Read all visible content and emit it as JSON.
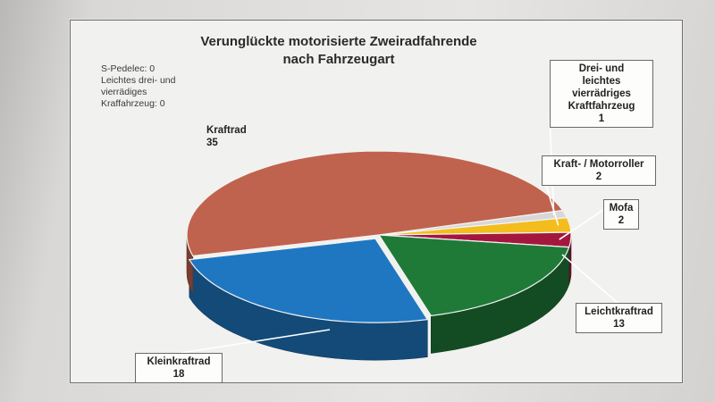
{
  "chart_data": {
    "type": "pie",
    "title": "Verunglückte motorisierte Zweiradfahrende",
    "subtitle": "nach Fahrzeugart",
    "series": [
      {
        "label_line1": "Drei- und",
        "label_line2": "leichtes",
        "label_line3": "vierrädriges",
        "label_line4": "Kraftfahrzeug",
        "value": 1,
        "color": "#d8d8d8"
      },
      {
        "label_line1": "Kraft- / Motorroller",
        "value": 2,
        "color": "#f2bd1d"
      },
      {
        "label_line1": "Mofa",
        "value": 2,
        "color": "#a3173f"
      },
      {
        "label_line1": "Leichtkraftrad",
        "value": 13,
        "color": "#1f7a38"
      },
      {
        "label_line1": "Kleinkraftrad",
        "value": 18,
        "color": "#1f77c2"
      },
      {
        "label_line1": "Kraftrad",
        "value": 35,
        "color": "#c0634e"
      }
    ],
    "zero_note": {
      "line1": "S-Pedelec: 0",
      "line2": "Leichtes drei- und",
      "line3": "vierrädiges",
      "line4": "Kraffahrzeug: 0"
    }
  }
}
